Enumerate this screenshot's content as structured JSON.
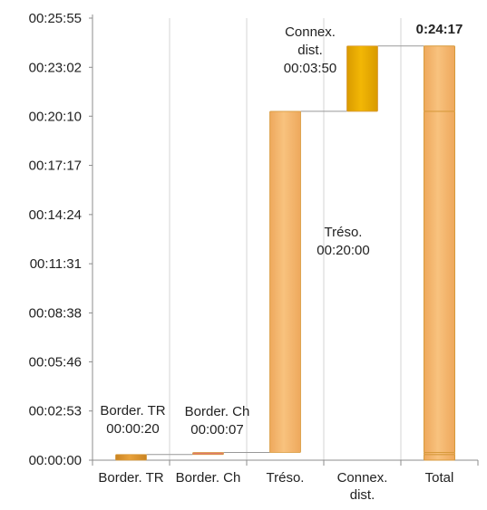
{
  "chart_data": {
    "type": "bar",
    "subtype": "waterfall",
    "categories": [
      "Border. TR",
      "Border. Ch",
      "Tréso.",
      "Connex.\ndist.",
      "Total"
    ],
    "y_ticks": [
      "00:00:00",
      "00:02:53",
      "00:05:46",
      "00:08:38",
      "00:11:31",
      "00:14:24",
      "00:17:17",
      "00:20:10",
      "00:23:02",
      "00:25:55"
    ],
    "ylim": [
      "00:00:00",
      "00:25:55"
    ],
    "bars": [
      {
        "category": "Border. TR",
        "start": "00:00:00",
        "end": "00:00:20",
        "label_name": "Border. TR",
        "label_value": "00:00:20"
      },
      {
        "category": "Border. Ch",
        "start": "00:00:20",
        "end": "00:00:27",
        "label_name": "Border. Ch",
        "label_value": "00:00:07"
      },
      {
        "category": "Tréso.",
        "start": "00:00:27",
        "end": "00:20:27",
        "label_name": "Tréso.",
        "label_value": "00:20:00"
      },
      {
        "category": "Connex.\ndist.",
        "start": "00:20:27",
        "end": "00:24:17",
        "label_name": "Connex.\ndist.",
        "label_value": "00:03:50"
      }
    ],
    "total": {
      "value": "00:24:17",
      "label": "0:24:17",
      "segments": [
        "00:00:20",
        "00:00:07",
        "00:20:00",
        "00:03:50"
      ]
    },
    "colors": {
      "bar": "#f8c27e",
      "bar_edge": "#d79a3c",
      "highlight_bar": "#f2b705",
      "small_bar": "#e9a23b",
      "tiny_bar": "#e07a6a",
      "connector": "#999999",
      "grid": "#d6d6d6"
    },
    "grid": true,
    "legend": "none"
  }
}
